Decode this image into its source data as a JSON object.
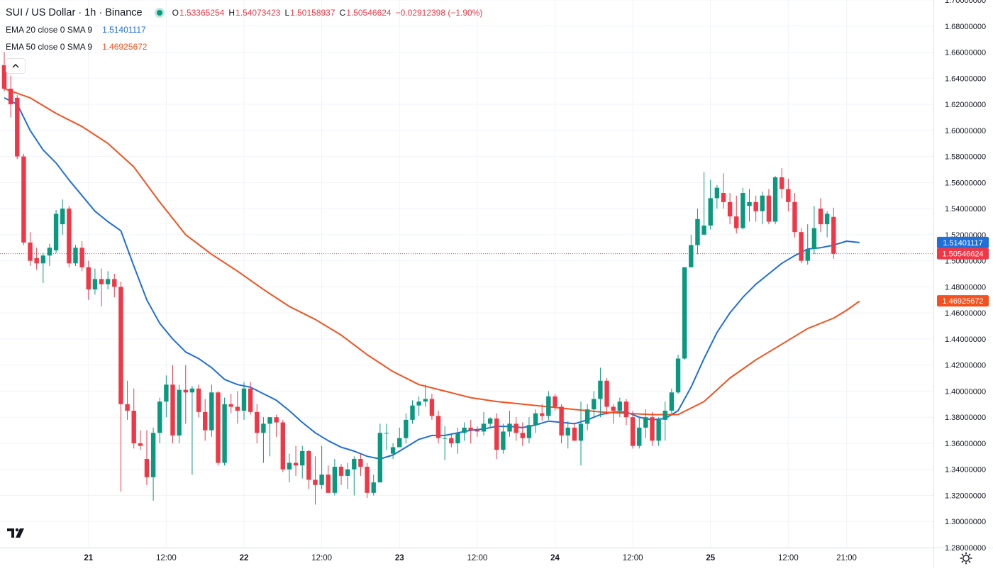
{
  "header": {
    "symbol_title": "SUI / US Dollar · 1h · Binance",
    "ohlc": {
      "o_label": "O",
      "o_value": "1.53365254",
      "h_label": "H",
      "h_value": "1.54073423",
      "l_label": "L",
      "l_value": "1.50158937",
      "c_label": "C",
      "c_value": "1.50546624",
      "change": "−0.02912398 (−1.90%)"
    },
    "indicators": [
      {
        "name": "EMA 20 close 0 SMA 9",
        "value": "1.51401117",
        "color": "#1e6fd9"
      },
      {
        "name": "EMA 50 close 0 SMA 9",
        "value": "1.46925672",
        "color": "#f4511e"
      }
    ]
  },
  "colors": {
    "up": "#089981",
    "down": "#f23645",
    "grid": "#f0f3fa",
    "axis_text": "#131722"
  },
  "icons": [
    "collapse-chevron-icon",
    "tradingview-logo-icon",
    "settings-gear-icon"
  ],
  "chart_data": {
    "type": "candlestick",
    "interval": "1h",
    "x_unit": "hours since first visible candle",
    "ylim": [
      1.28,
      1.7
    ],
    "y_ticks": [
      "1.28000000",
      "1.30000000",
      "1.32000000",
      "1.34000000",
      "1.36000000",
      "1.38000000",
      "1.40000000",
      "1.42000000",
      "1.44000000",
      "1.46000000",
      "1.48000000",
      "1.50000000",
      "1.52000000",
      "1.54000000",
      "1.56000000",
      "1.58000000",
      "1.60000000",
      "1.62000000",
      "1.64000000",
      "1.66000000",
      "1.68000000",
      "1.70000000"
    ],
    "x_ticks": [
      {
        "label": "21",
        "bold": true,
        "x": 13
      },
      {
        "label": "12:00",
        "bold": false,
        "x": 25
      },
      {
        "label": "22",
        "bold": true,
        "x": 37
      },
      {
        "label": "12:00",
        "bold": false,
        "x": 49
      },
      {
        "label": "23",
        "bold": true,
        "x": 61
      },
      {
        "label": "12:00",
        "bold": false,
        "x": 73
      },
      {
        "label": "24",
        "bold": true,
        "x": 85
      },
      {
        "label": "12:00",
        "bold": false,
        "x": 97
      },
      {
        "label": "25",
        "bold": true,
        "x": 109
      },
      {
        "label": "12:00",
        "bold": false,
        "x": 121
      },
      {
        "label": "21:00",
        "bold": false,
        "x": 130
      }
    ],
    "candles": [
      [
        1.65,
        1.66,
        1.63,
        1.632
      ],
      [
        1.632,
        1.642,
        1.61,
        1.62
      ],
      [
        1.625,
        1.627,
        1.578,
        1.58
      ],
      [
        1.58,
        1.582,
        1.512,
        1.514
      ],
      [
        1.514,
        1.522,
        1.496,
        1.5
      ],
      [
        1.502,
        1.51,
        1.493,
        1.498
      ],
      [
        1.498,
        1.506,
        1.483,
        1.504
      ],
      [
        1.504,
        1.513,
        1.496,
        1.51
      ],
      [
        1.508,
        1.539,
        1.506,
        1.536
      ],
      [
        1.528,
        1.547,
        1.52,
        1.54
      ],
      [
        1.54,
        1.542,
        1.495,
        1.498
      ],
      [
        1.498,
        1.512,
        1.496,
        1.51
      ],
      [
        1.51,
        1.515,
        1.492,
        1.495
      ],
      [
        1.495,
        1.5,
        1.47,
        1.478
      ],
      [
        1.478,
        1.494,
        1.474,
        1.486
      ],
      [
        1.486,
        1.494,
        1.465,
        1.482
      ],
      [
        1.482,
        1.492,
        1.478,
        1.486
      ],
      [
        1.486,
        1.49,
        1.472,
        1.48
      ],
      [
        1.48,
        1.484,
        1.323,
        1.39
      ],
      [
        1.39,
        1.408,
        1.378,
        1.385
      ],
      [
        1.385,
        1.402,
        1.356,
        1.36
      ],
      [
        1.36,
        1.37,
        1.355,
        1.358
      ],
      [
        1.348,
        1.37,
        1.328,
        1.334
      ],
      [
        1.334,
        1.372,
        1.316,
        1.368
      ],
      [
        1.368,
        1.395,
        1.36,
        1.392
      ],
      [
        1.392,
        1.412,
        1.38,
        1.405
      ],
      [
        1.405,
        1.42,
        1.36,
        1.366
      ],
      [
        1.366,
        1.405,
        1.36,
        1.401
      ],
      [
        1.401,
        1.42,
        1.375,
        1.399
      ],
      [
        1.399,
        1.404,
        1.336,
        1.402
      ],
      [
        1.402,
        1.405,
        1.38,
        1.384
      ],
      [
        1.384,
        1.394,
        1.362,
        1.37
      ],
      [
        1.37,
        1.405,
        1.365,
        1.399
      ],
      [
        1.399,
        1.4,
        1.343,
        1.345
      ],
      [
        1.345,
        1.395,
        1.343,
        1.39
      ],
      [
        1.39,
        1.398,
        1.383,
        1.388
      ],
      [
        1.388,
        1.4,
        1.375,
        1.385
      ],
      [
        1.385,
        1.407,
        1.378,
        1.402
      ],
      [
        1.402,
        1.407,
        1.382,
        1.384
      ],
      [
        1.384,
        1.39,
        1.36,
        1.368
      ],
      [
        1.368,
        1.38,
        1.345,
        1.375
      ],
      [
        1.375,
        1.38,
        1.35,
        1.38
      ],
      [
        1.38,
        1.382,
        1.365,
        1.376
      ],
      [
        1.376,
        1.378,
        1.338,
        1.34
      ],
      [
        1.34,
        1.352,
        1.33,
        1.345
      ],
      [
        1.345,
        1.358,
        1.335,
        1.343
      ],
      [
        1.343,
        1.358,
        1.333,
        1.354
      ],
      [
        1.354,
        1.355,
        1.325,
        1.332
      ],
      [
        1.332,
        1.35,
        1.313,
        1.328
      ],
      [
        1.328,
        1.358,
        1.325,
        1.336
      ],
      [
        1.336,
        1.343,
        1.322,
        1.322
      ],
      [
        1.322,
        1.348,
        1.32,
        1.342
      ],
      [
        1.342,
        1.344,
        1.328,
        1.335
      ],
      [
        1.335,
        1.345,
        1.325,
        1.34
      ],
      [
        1.34,
        1.35,
        1.32,
        1.348
      ],
      [
        1.348,
        1.352,
        1.335,
        1.342
      ],
      [
        1.342,
        1.345,
        1.318,
        1.322
      ],
      [
        1.322,
        1.336,
        1.32,
        1.33
      ],
      [
        1.33,
        1.375,
        1.33,
        1.368
      ],
      [
        1.368,
        1.375,
        1.355,
        1.368
      ],
      [
        1.352,
        1.36,
        1.348,
        1.357
      ],
      [
        1.357,
        1.372,
        1.357,
        1.364
      ],
      [
        1.364,
        1.383,
        1.36,
        1.378
      ],
      [
        1.378,
        1.393,
        1.375,
        1.389
      ],
      [
        1.389,
        1.396,
        1.381,
        1.392
      ],
      [
        1.392,
        1.405,
        1.388,
        1.394
      ],
      [
        1.394,
        1.398,
        1.378,
        1.381
      ],
      [
        1.381,
        1.385,
        1.36,
        1.364
      ],
      [
        1.364,
        1.373,
        1.347,
        1.364
      ],
      [
        1.364,
        1.367,
        1.357,
        1.36
      ],
      [
        1.36,
        1.372,
        1.352,
        1.368
      ],
      [
        1.368,
        1.376,
        1.362,
        1.372
      ],
      [
        1.372,
        1.378,
        1.36,
        1.37
      ],
      [
        1.37,
        1.373,
        1.365,
        1.369
      ],
      [
        1.369,
        1.384,
        1.366,
        1.375
      ],
      [
        1.375,
        1.38,
        1.372,
        1.379
      ],
      [
        1.379,
        1.383,
        1.348,
        1.355
      ],
      [
        1.355,
        1.375,
        1.352,
        1.369
      ],
      [
        1.369,
        1.385,
        1.365,
        1.375
      ],
      [
        1.375,
        1.38,
        1.362,
        1.368
      ],
      [
        1.368,
        1.376,
        1.358,
        1.364
      ],
      [
        1.364,
        1.38,
        1.36,
        1.374
      ],
      [
        1.374,
        1.386,
        1.368,
        1.383
      ],
      [
        1.383,
        1.39,
        1.377,
        1.381
      ],
      [
        1.381,
        1.4,
        1.378,
        1.396
      ],
      [
        1.396,
        1.398,
        1.385,
        1.388
      ],
      [
        1.388,
        1.39,
        1.36,
        1.366
      ],
      [
        1.366,
        1.377,
        1.356,
        1.372
      ],
      [
        1.372,
        1.376,
        1.362,
        1.362
      ],
      [
        1.362,
        1.392,
        1.343,
        1.375
      ],
      [
        1.375,
        1.39,
        1.37,
        1.386
      ],
      [
        1.386,
        1.4,
        1.38,
        1.394
      ],
      [
        1.394,
        1.418,
        1.38,
        1.408
      ],
      [
        1.408,
        1.41,
        1.382,
        1.388
      ],
      [
        1.388,
        1.39,
        1.375,
        1.385
      ],
      [
        1.385,
        1.395,
        1.38,
        1.392
      ],
      [
        1.392,
        1.394,
        1.374,
        1.38
      ],
      [
        1.38,
        1.385,
        1.356,
        1.358
      ],
      [
        1.358,
        1.38,
        1.356,
        1.372
      ],
      [
        1.372,
        1.386,
        1.364,
        1.38
      ],
      [
        1.38,
        1.384,
        1.358,
        1.362
      ],
      [
        1.362,
        1.38,
        1.358,
        1.378
      ],
      [
        1.378,
        1.392,
        1.362,
        1.385
      ],
      [
        1.385,
        1.402,
        1.382,
        1.399
      ],
      [
        1.399,
        1.428,
        1.398,
        1.425
      ],
      [
        1.425,
        1.495,
        1.424,
        1.495
      ],
      [
        1.495,
        1.52,
        1.495,
        1.512
      ],
      [
        1.512,
        1.54,
        1.505,
        1.532
      ],
      [
        1.52,
        1.568,
        1.52,
        1.527
      ],
      [
        1.527,
        1.562,
        1.524,
        1.548
      ],
      [
        1.548,
        1.558,
        1.54,
        1.556
      ],
      [
        1.552,
        1.567,
        1.54,
        1.545
      ],
      [
        1.545,
        1.552,
        1.528,
        1.534
      ],
      [
        1.534,
        1.55,
        1.521,
        1.525
      ],
      [
        1.525,
        1.556,
        1.524,
        1.552
      ],
      [
        1.542,
        1.555,
        1.53,
        1.545
      ],
      [
        1.545,
        1.55,
        1.53,
        1.538
      ],
      [
        1.538,
        1.553,
        1.528,
        1.55
      ],
      [
        1.55,
        1.555,
        1.528,
        1.53
      ],
      [
        1.53,
        1.565,
        1.528,
        1.564
      ],
      [
        1.564,
        1.571,
        1.548,
        1.555
      ],
      [
        1.555,
        1.563,
        1.538,
        1.545
      ],
      [
        1.545,
        1.552,
        1.518,
        1.522
      ],
      [
        1.522,
        1.525,
        1.498,
        1.5
      ],
      [
        1.5,
        1.528,
        1.497,
        1.509
      ],
      [
        1.509,
        1.542,
        1.505,
        1.525
      ],
      [
        1.54,
        1.548,
        1.522,
        1.528
      ],
      [
        1.528,
        1.538,
        1.518,
        1.536
      ],
      [
        1.53365254,
        1.54073423,
        1.50158937,
        1.50546624
      ]
    ],
    "series": [
      {
        "name": "EMA 20 close 0 SMA 9",
        "color": "#1e6fd9",
        "points": [
          [
            0,
            1.625
          ],
          [
            2,
            1.62
          ],
          [
            4,
            1.6
          ],
          [
            6,
            1.585
          ],
          [
            8,
            1.575
          ],
          [
            10,
            1.562
          ],
          [
            12,
            1.55
          ],
          [
            14,
            1.538
          ],
          [
            16,
            1.53
          ],
          [
            18,
            1.523
          ],
          [
            20,
            1.496
          ],
          [
            22,
            1.47
          ],
          [
            24,
            1.452
          ],
          [
            26,
            1.44
          ],
          [
            28,
            1.43
          ],
          [
            30,
            1.425
          ],
          [
            32,
            1.418
          ],
          [
            34,
            1.409
          ],
          [
            36,
            1.405
          ],
          [
            38,
            1.403
          ],
          [
            40,
            1.398
          ],
          [
            42,
            1.393
          ],
          [
            44,
            1.385
          ],
          [
            46,
            1.376
          ],
          [
            48,
            1.368
          ],
          [
            50,
            1.362
          ],
          [
            52,
            1.357
          ],
          [
            54,
            1.354
          ],
          [
            56,
            1.35
          ],
          [
            58,
            1.348
          ],
          [
            60,
            1.351
          ],
          [
            62,
            1.357
          ],
          [
            64,
            1.363
          ],
          [
            66,
            1.366
          ],
          [
            68,
            1.366
          ],
          [
            70,
            1.368
          ],
          [
            72,
            1.37
          ],
          [
            74,
            1.371
          ],
          [
            76,
            1.373
          ],
          [
            78,
            1.373
          ],
          [
            80,
            1.372
          ],
          [
            82,
            1.374
          ],
          [
            84,
            1.377
          ],
          [
            86,
            1.376
          ],
          [
            88,
            1.375
          ],
          [
            90,
            1.378
          ],
          [
            92,
            1.382
          ],
          [
            94,
            1.384
          ],
          [
            96,
            1.384
          ],
          [
            98,
            1.38
          ],
          [
            100,
            1.378
          ],
          [
            102,
            1.379
          ],
          [
            104,
            1.385
          ],
          [
            106,
            1.403
          ],
          [
            108,
            1.425
          ],
          [
            110,
            1.445
          ],
          [
            112,
            1.46
          ],
          [
            114,
            1.472
          ],
          [
            116,
            1.482
          ],
          [
            118,
            1.49
          ],
          [
            120,
            1.498
          ],
          [
            122,
            1.504
          ],
          [
            124,
            1.509
          ],
          [
            126,
            1.51
          ],
          [
            128,
            1.512
          ],
          [
            130,
            1.515
          ],
          [
            132,
            1.514
          ]
        ]
      },
      {
        "name": "EMA 50 close 0 SMA 9",
        "color": "#f4511e",
        "points": [
          [
            0,
            1.632
          ],
          [
            4,
            1.625
          ],
          [
            8,
            1.613
          ],
          [
            12,
            1.603
          ],
          [
            16,
            1.59
          ],
          [
            20,
            1.572
          ],
          [
            24,
            1.545
          ],
          [
            28,
            1.52
          ],
          [
            32,
            1.505
          ],
          [
            36,
            1.492
          ],
          [
            40,
            1.478
          ],
          [
            44,
            1.465
          ],
          [
            48,
            1.455
          ],
          [
            52,
            1.443
          ],
          [
            56,
            1.428
          ],
          [
            60,
            1.415
          ],
          [
            64,
            1.405
          ],
          [
            68,
            1.4
          ],
          [
            72,
            1.395
          ],
          [
            76,
            1.392
          ],
          [
            80,
            1.39
          ],
          [
            84,
            1.388
          ],
          [
            88,
            1.386
          ],
          [
            92,
            1.384
          ],
          [
            96,
            1.383
          ],
          [
            100,
            1.382
          ],
          [
            104,
            1.382
          ],
          [
            108,
            1.392
          ],
          [
            112,
            1.41
          ],
          [
            116,
            1.424
          ],
          [
            120,
            1.436
          ],
          [
            124,
            1.448
          ],
          [
            128,
            1.456
          ],
          [
            130,
            1.462
          ],
          [
            132,
            1.469
          ]
        ]
      }
    ],
    "price_labels": [
      {
        "value": 1.51401117,
        "text": "1.51401117",
        "color": "#1e6fd9"
      },
      {
        "value": 1.50546624,
        "text": "1.50546624",
        "color": "#f23645"
      },
      {
        "value": 1.46925672,
        "text": "1.46925672",
        "color": "#f4511e"
      }
    ],
    "last_price_line": 1.50546624
  }
}
